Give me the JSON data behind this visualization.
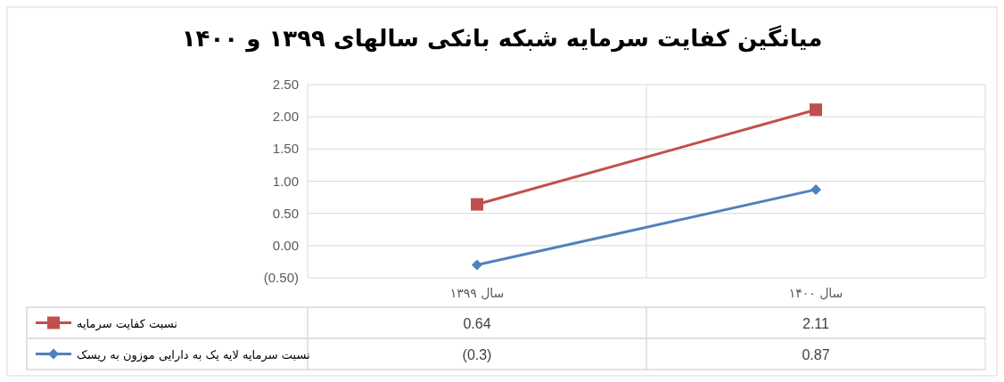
{
  "chart_data": {
    "type": "line",
    "title": "میانگین کفایت سرمایه شبکه بانکی سالهای ۱۳۹۹ و ۱۴۰۰",
    "categories": [
      "سال ۱۳۹۹",
      "سال ۱۴۰۰"
    ],
    "series": [
      {
        "name": "نسبت کفایت سرمایه",
        "color": "#c0504d",
        "marker": "square",
        "values": [
          0.64,
          2.11
        ],
        "value_labels": [
          "0.64",
          "2.11"
        ]
      },
      {
        "name": "نسبت سرمایه لایه یک به دارایی موزون به ریسک",
        "color": "#4f81bd",
        "marker": "diamond",
        "values": [
          -0.3,
          0.87
        ],
        "value_labels": [
          "(0.3)",
          "0.87"
        ]
      }
    ],
    "ylim": [
      -0.5,
      2.5
    ],
    "yticks": [
      {
        "value": -0.5,
        "label": "(0.50)"
      },
      {
        "value": 0,
        "label": "0.00"
      },
      {
        "value": 0.5,
        "label": "0.50"
      },
      {
        "value": 1,
        "label": "1.00"
      },
      {
        "value": 1.5,
        "label": "1.50"
      },
      {
        "value": 2,
        "label": "2.00"
      },
      {
        "value": 2.5,
        "label": "2.50"
      }
    ],
    "grid": "y",
    "legend": "bottom",
    "line_style": "solid"
  }
}
